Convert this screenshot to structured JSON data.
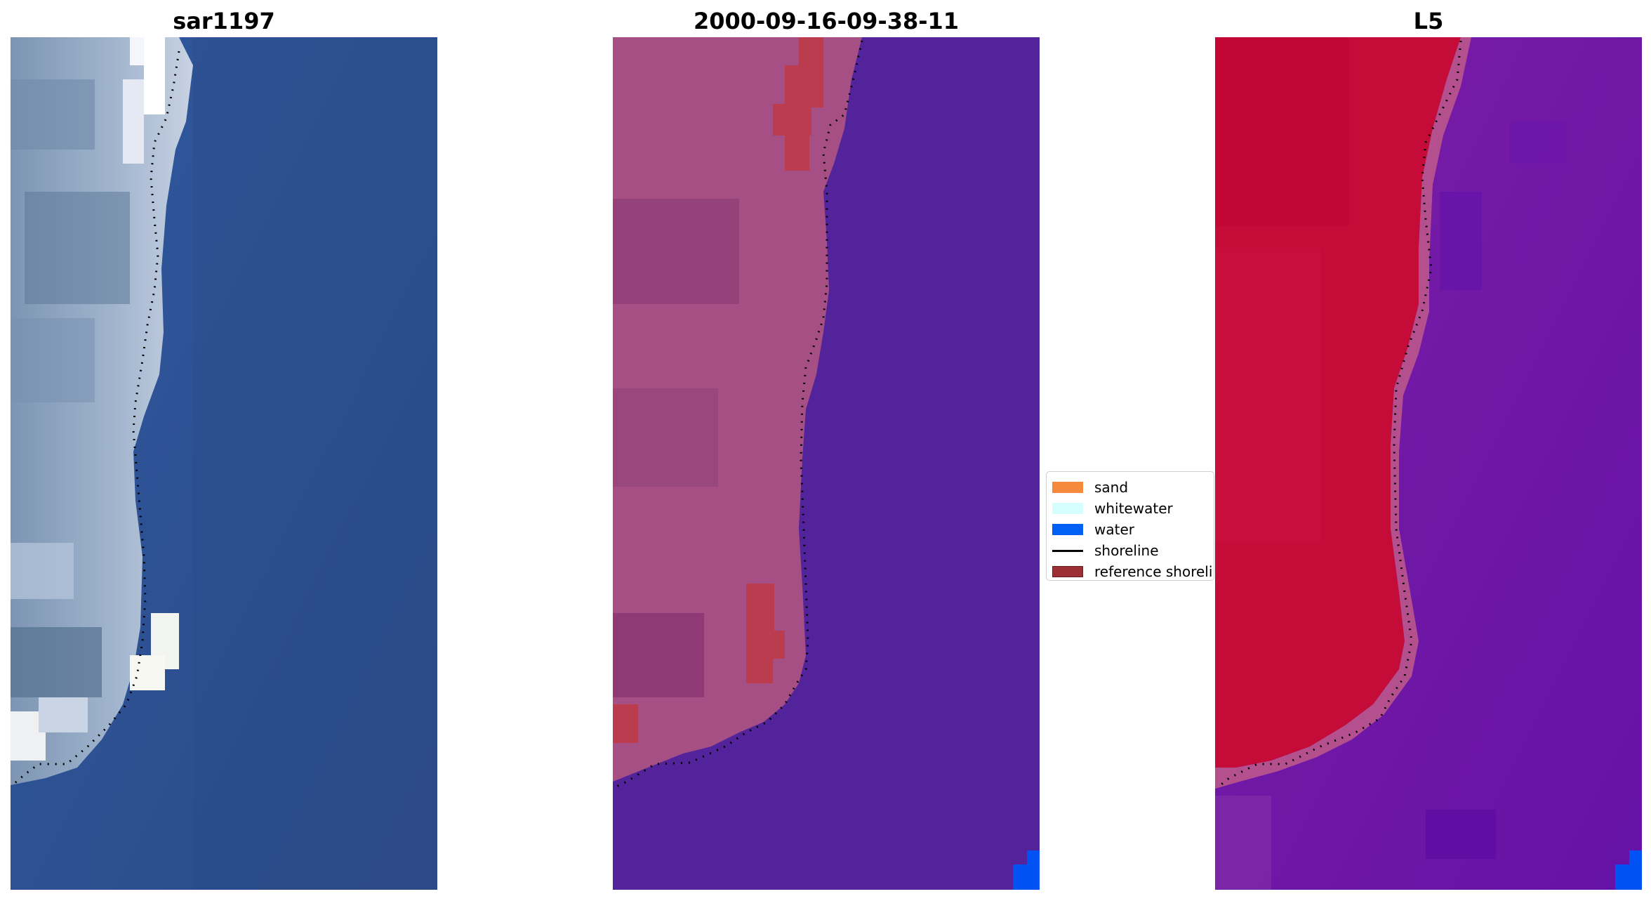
{
  "panels": [
    {
      "title": "sar1197"
    },
    {
      "title": "2000-09-16-09-38-11"
    },
    {
      "title": "L5"
    }
  ],
  "legend": {
    "items": [
      {
        "label": "sand",
        "color": "#f58a3c"
      },
      {
        "label": "whitewater",
        "color": "#d5fffc"
      },
      {
        "label": "water",
        "color": "#005ff5"
      },
      {
        "label": "shoreline",
        "color": "#000000"
      },
      {
        "label": "reference shoreline",
        "color": "#9c2f33"
      }
    ]
  },
  "colors": {
    "sea_rgb": "#2c4f8c",
    "classified_water": "#52239a",
    "classified_land": "#a54f84",
    "classified_sand_blend": "#bb3b4f",
    "water_corner": "#0052f5",
    "index_land": "#c50b38",
    "index_water": "#7019a6",
    "shoreline": "#000000"
  }
}
